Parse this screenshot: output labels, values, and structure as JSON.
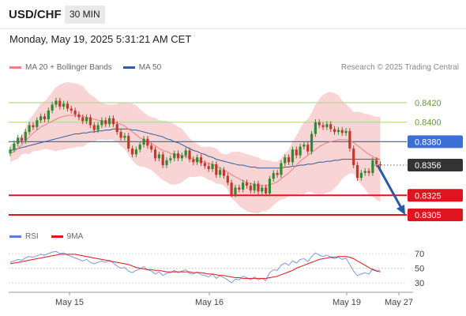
{
  "header": {
    "symbol": "USD/CHF",
    "timeframe": "30 MIN"
  },
  "datetime": "Monday, May 19, 2025 5:31:21 AM CET",
  "legend": [
    {
      "label": "MA 20 + Bollinger Bands",
      "color": "#f08080"
    },
    {
      "label": "MA 50",
      "color": "#2f5c9e"
    }
  ],
  "source": "Research © 2025 Trading Central",
  "rsi_legend": [
    {
      "label": "RSI",
      "color": "#5b7fd6"
    },
    {
      "label": "9MA",
      "color": "#e0141e"
    }
  ],
  "colors": {
    "up": "#2e8b2e",
    "down": "#c0392b",
    "resistance": "#b5d98a",
    "support": "#e0141e",
    "pivot": "#3c6fd6",
    "current": "#333333",
    "band": "#f6c6c6"
  },
  "chart_data": [
    {
      "type": "candlestick",
      "title": "",
      "ylim": [
        0.8296,
        0.8436
      ],
      "x_tick_labels": [
        "May 15",
        "May 16",
        "May 19",
        "May 27"
      ],
      "levels": [
        {
          "label": "0.8420",
          "value": 0.842,
          "kind": "resistance"
        },
        {
          "label": "0.8400",
          "value": 0.84,
          "kind": "resistance"
        },
        {
          "label": "0.8380",
          "value": 0.838,
          "kind": "pivot"
        },
        {
          "label": "0.8356",
          "value": 0.8356,
          "kind": "current"
        },
        {
          "label": "0.8325",
          "value": 0.8325,
          "kind": "support"
        },
        {
          "label": "0.8305",
          "value": 0.8305,
          "kind": "support"
        }
      ],
      "close": [
        0.8372,
        0.8378,
        0.8384,
        0.8381,
        0.839,
        0.8397,
        0.8395,
        0.8402,
        0.8406,
        0.8403,
        0.8412,
        0.8418,
        0.8422,
        0.8416,
        0.8419,
        0.8414,
        0.8412,
        0.8408,
        0.8405,
        0.8401,
        0.8405,
        0.8397,
        0.8392,
        0.8397,
        0.8402,
        0.8398,
        0.8404,
        0.8398,
        0.839,
        0.8384,
        0.8386,
        0.8373,
        0.8367,
        0.8372,
        0.8377,
        0.8383,
        0.8376,
        0.8372,
        0.8363,
        0.8367,
        0.8356,
        0.8361,
        0.8363,
        0.8368,
        0.8363,
        0.8366,
        0.8371,
        0.8362,
        0.8359,
        0.8364,
        0.8358,
        0.8355,
        0.8352,
        0.8357,
        0.8346,
        0.8351,
        0.8345,
        0.8338,
        0.8326,
        0.8333,
        0.8331,
        0.8338,
        0.8335,
        0.833,
        0.8337,
        0.8329,
        0.8333,
        0.8327,
        0.8342,
        0.8348,
        0.8346,
        0.8358,
        0.8364,
        0.8359,
        0.8372,
        0.8366,
        0.8375,
        0.8377,
        0.837,
        0.8388,
        0.84,
        0.8397,
        0.8395,
        0.8398,
        0.8393,
        0.839,
        0.8392,
        0.8389,
        0.8391,
        0.8373,
        0.8356,
        0.8343,
        0.8348,
        0.835,
        0.8348,
        0.8361,
        0.8357,
        0.8356
      ],
      "ma20": [
        0.8368,
        0.837,
        0.8373,
        0.8377,
        0.8381,
        0.8385,
        0.8389,
        0.8392,
        0.8395,
        0.8397,
        0.8399,
        0.8401,
        0.8403,
        0.8405,
        0.8406,
        0.8407,
        0.8407,
        0.8407,
        0.8407,
        0.8406,
        0.8405,
        0.8404,
        0.8403,
        0.8402,
        0.8401,
        0.84,
        0.84,
        0.84,
        0.8399,
        0.8398,
        0.8396,
        0.8393,
        0.839,
        0.8387,
        0.8384,
        0.8382,
        0.838,
        0.8378,
        0.8376,
        0.8373,
        0.8371,
        0.837,
        0.8368,
        0.8367,
        0.8366,
        0.8366,
        0.8365,
        0.8364,
        0.8362,
        0.8361,
        0.836,
        0.8359,
        0.8358,
        0.8357,
        0.8355,
        0.8353,
        0.8351,
        0.8349,
        0.8346,
        0.8344,
        0.8342,
        0.834,
        0.8338,
        0.8337,
        0.8336,
        0.8335,
        0.8335,
        0.8335,
        0.8336,
        0.8337,
        0.8339,
        0.8342,
        0.8345,
        0.8348,
        0.8352,
        0.8356,
        0.836,
        0.8363,
        0.8366,
        0.8369,
        0.8372,
        0.8375,
        0.8377,
        0.8379,
        0.838,
        0.8381,
        0.8382,
        0.8382,
        0.8382,
        0.8381,
        0.8379,
        0.8376,
        0.8373,
        0.837,
        0.8367,
        0.8365,
        0.8363,
        0.8362
      ],
      "ma50": [
        0.8371,
        0.8372,
        0.8373,
        0.8374,
        0.8375,
        0.8376,
        0.8377,
        0.8378,
        0.8379,
        0.838,
        0.8381,
        0.8382,
        0.8383,
        0.8384,
        0.8385,
        0.8386,
        0.8387,
        0.8388,
        0.8388,
        0.8389,
        0.8389,
        0.839,
        0.839,
        0.8391,
        0.8391,
        0.8392,
        0.8392,
        0.8393,
        0.8393,
        0.8393,
        0.8393,
        0.8393,
        0.8392,
        0.8392,
        0.8391,
        0.839,
        0.8389,
        0.8388,
        0.8387,
        0.8386,
        0.8385,
        0.8383,
        0.8382,
        0.838,
        0.8379,
        0.8377,
        0.8375,
        0.8373,
        0.8371,
        0.837,
        0.8368,
        0.8367,
        0.8365,
        0.8364,
        0.8362,
        0.8361,
        0.836,
        0.8359,
        0.8358,
        0.8357,
        0.8356,
        0.8356,
        0.8355,
        0.8354,
        0.8354,
        0.8353,
        0.8353,
        0.8353,
        0.8353,
        0.8353,
        0.8353,
        0.8353,
        0.8354,
        0.8354,
        0.8355,
        0.8355,
        0.8356,
        0.8356,
        0.8357,
        0.8357,
        0.8358,
        0.8359,
        0.8359,
        0.836,
        0.836,
        0.8361,
        0.8361,
        0.8362,
        0.8362,
        0.8362,
        0.8362,
        0.8362,
        0.8362,
        0.8362,
        0.8362,
        0.8362,
        0.8362,
        0.8362
      ],
      "projection": {
        "from": 0.8356,
        "to": 0.8305
      }
    },
    {
      "type": "line",
      "title": "RSI",
      "ylim": [
        25,
        75
      ],
      "y_ticks": [
        70,
        50,
        30
      ],
      "series": [
        {
          "name": "RSI",
          "values": [
            58,
            60,
            62,
            61,
            64,
            66,
            65,
            67,
            69,
            68,
            70,
            72,
            73,
            70,
            71,
            68,
            66,
            64,
            62,
            60,
            62,
            58,
            56,
            58,
            60,
            58,
            61,
            57,
            53,
            50,
            51,
            46,
            44,
            47,
            49,
            52,
            48,
            46,
            42,
            45,
            40,
            43,
            44,
            47,
            44,
            46,
            48,
            43,
            42,
            45,
            41,
            40,
            38,
            42,
            36,
            40,
            37,
            34,
            30,
            35,
            34,
            39,
            37,
            34,
            38,
            34,
            36,
            33,
            44,
            48,
            47,
            54,
            57,
            54,
            60,
            57,
            62,
            63,
            59,
            66,
            71,
            68,
            66,
            68,
            65,
            63,
            65,
            62,
            64,
            55,
            46,
            40,
            42,
            44,
            42,
            49,
            47,
            47
          ]
        },
        {
          "name": "9MA",
          "values": [
            56,
            57,
            58,
            59,
            60,
            61,
            62,
            63,
            64,
            65,
            66,
            67,
            68,
            69,
            69,
            69,
            69,
            69,
            68,
            67,
            66,
            65,
            64,
            63,
            62,
            61,
            60,
            59,
            58,
            57,
            56,
            55,
            53,
            51,
            50,
            49,
            48,
            48,
            47,
            47,
            46,
            45,
            45,
            45,
            45,
            45,
            45,
            45,
            44,
            44,
            44,
            43,
            42,
            42,
            41,
            40,
            40,
            39,
            38,
            37,
            37,
            36,
            36,
            36,
            36,
            36,
            36,
            36,
            37,
            38,
            39,
            41,
            43,
            45,
            47,
            50,
            52,
            54,
            56,
            58,
            60,
            62,
            63,
            64,
            65,
            65,
            66,
            66,
            66,
            65,
            63,
            60,
            57,
            54,
            51,
            48,
            46,
            45
          ]
        }
      ]
    }
  ]
}
